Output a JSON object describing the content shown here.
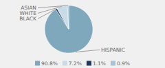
{
  "chart_data": {
    "type": "pie",
    "categories": [
      "HISPANIC",
      "BLACK",
      "WHITE",
      "ASIAN"
    ],
    "values": [
      90.8,
      1.1,
      7.2,
      0.9
    ],
    "value_labels": [
      "90.8%",
      "1.1%",
      "7.2%",
      "0.9%"
    ],
    "colors": [
      "#7fa8bc",
      "#1e3a5f",
      "#c8dce8",
      "#a8c4d4"
    ],
    "legend": "bottom"
  }
}
